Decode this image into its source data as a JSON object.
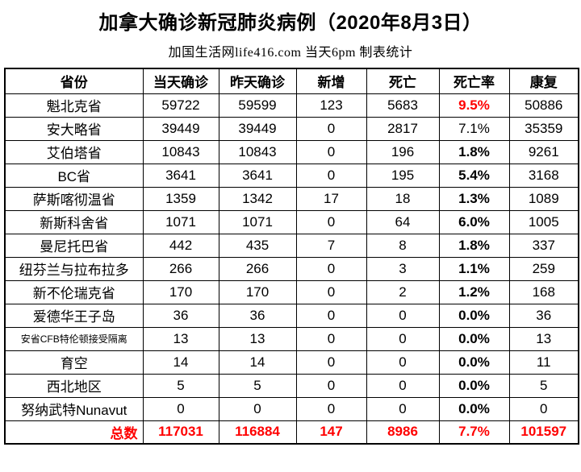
{
  "colors": {
    "emphasis_red": "#ff0000",
    "text": "#000000",
    "border": "#000000",
    "background": "#ffffff"
  },
  "chart_data": {
    "type": "table",
    "title": "加拿大确诊新冠肺炎病例（2020年8月3日）",
    "subtitle": "加国生活网life416.com 当天6pm 制表统计",
    "columns": [
      "省份",
      "当天确诊",
      "昨天确诊",
      "新增",
      "死亡",
      "死亡率",
      "康复"
    ],
    "rows": [
      [
        "魁北克省",
        59722,
        59599,
        123,
        5683,
        "9.5%",
        50886
      ],
      [
        "安大略省",
        39449,
        39449,
        0,
        2817,
        "7.1%",
        35359
      ],
      [
        "艾伯塔省",
        10843,
        10843,
        0,
        196,
        "1.8%",
        9261
      ],
      [
        "BC省",
        3641,
        3641,
        0,
        195,
        "5.4%",
        3168
      ],
      [
        "萨斯喀彻温省",
        1359,
        1342,
        17,
        18,
        "1.3%",
        1089
      ],
      [
        "新斯科舍省",
        1071,
        1071,
        0,
        64,
        "6.0%",
        1005
      ],
      [
        "曼尼托巴省",
        442,
        435,
        7,
        8,
        "1.8%",
        337
      ],
      [
        "纽芬兰与拉布拉多",
        266,
        266,
        0,
        3,
        "1.1%",
        259
      ],
      [
        "新不伦瑞克省",
        170,
        170,
        0,
        2,
        "1.2%",
        168
      ],
      [
        "爱德华王子岛",
        36,
        36,
        0,
        0,
        "0.0%",
        36
      ],
      [
        "安省CFB特伦顿接受隔离",
        13,
        13,
        0,
        0,
        "0.0%",
        13
      ],
      [
        "育空",
        14,
        14,
        0,
        0,
        "0.0%",
        11
      ],
      [
        "西北地区",
        5,
        5,
        0,
        0,
        "0.0%",
        5
      ],
      [
        "努纳武特Nunavut",
        0,
        0,
        0,
        0,
        "0.0%",
        0
      ]
    ],
    "total": [
      "总数",
      117031,
      116884,
      147,
      8986,
      "7.7%",
      101597
    ]
  },
  "styles": {
    "death_rate_emphasis": [
      "red-bold",
      "normal",
      "bold",
      "bold",
      "bold",
      "bold",
      "bold",
      "bold",
      "bold",
      "bold",
      "bold",
      "bold",
      "bold",
      "bold"
    ],
    "total_row_emphasis": "red-bold"
  }
}
